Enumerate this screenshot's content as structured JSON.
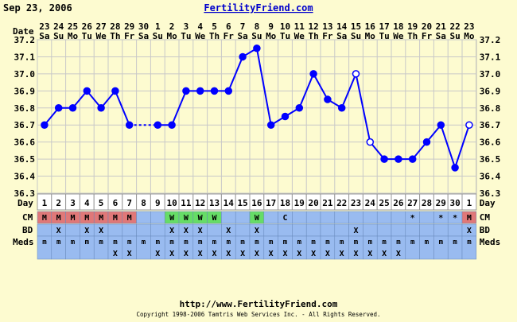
{
  "header": {
    "date": "Sep 23, 2006",
    "site": "FertilityFriend.com"
  },
  "footer": {
    "url": "http://www.FertilityFriend.com",
    "copyright": "Copyright 1998-2006 Tamtris Web Services Inc. - All Rights Reserved."
  },
  "row_labels": {
    "date": "Date",
    "day": "Day",
    "cm": "CM",
    "bd": "BD",
    "meds": "Meds"
  },
  "colors": {
    "background": "#fdfbd0",
    "line": "#0000ff",
    "cm_menstrual": "#e07878",
    "cm_watery": "#66dd66",
    "row_blue": "#99bbf0",
    "grid": "#c8c8c8"
  },
  "chart_data": {
    "type": "line",
    "title": "",
    "xlabel": "Day",
    "ylabel": "",
    "ylim": [
      36.3,
      37.2
    ],
    "y_ticks": [
      "36.3",
      "36.4",
      "36.5",
      "36.6",
      "36.7",
      "36.8",
      "36.9",
      "37.0",
      "37.1",
      "37.2"
    ],
    "grid": true,
    "dates": [
      "23",
      "24",
      "25",
      "26",
      "27",
      "28",
      "29",
      "30",
      "1",
      "2",
      "3",
      "4",
      "5",
      "6",
      "7",
      "8",
      "9",
      "10",
      "11",
      "12",
      "13",
      "14",
      "15",
      "16",
      "17",
      "18",
      "19",
      "20",
      "21",
      "22",
      "23"
    ],
    "weekdays": [
      "Sa",
      "Su",
      "Mo",
      "Tu",
      "We",
      "Th",
      "Fr",
      "Sa",
      "Su",
      "Mo",
      "Tu",
      "We",
      "Th",
      "Fr",
      "Sa",
      "Su",
      "Mo",
      "Tu",
      "We",
      "Th",
      "Fr",
      "Sa",
      "Su",
      "Mo",
      "Tu",
      "We",
      "Th",
      "Fr",
      "Sa",
      "Su",
      "Mo"
    ],
    "days": [
      "1",
      "2",
      "3",
      "4",
      "5",
      "6",
      "7",
      "8",
      "9",
      "10",
      "11",
      "12",
      "13",
      "14",
      "15",
      "16",
      "17",
      "18",
      "19",
      "20",
      "21",
      "22",
      "23",
      "24",
      "25",
      "26",
      "27",
      "28",
      "29",
      "30",
      "1"
    ],
    "temps": [
      36.7,
      36.8,
      36.8,
      36.9,
      36.8,
      36.9,
      36.7,
      null,
      36.7,
      36.7,
      36.9,
      36.9,
      36.9,
      36.9,
      37.1,
      37.15,
      36.7,
      36.75,
      36.8,
      37.0,
      36.85,
      36.8,
      37.0,
      36.6,
      36.5,
      36.5,
      36.5,
      36.6,
      36.7,
      36.45,
      36.7
    ],
    "open_points": [
      22,
      23,
      30
    ],
    "dashed_segments": [
      [
        6,
        8
      ]
    ],
    "cm": [
      "M",
      "M",
      "M",
      "M",
      "M",
      "M",
      "M",
      "",
      "",
      "W",
      "W",
      "W",
      "W",
      "",
      "",
      "W",
      "",
      "C",
      "",
      "",
      "",
      "",
      "",
      "",
      "",
      "",
      "*",
      "",
      "*",
      "*",
      "M"
    ],
    "bd": [
      "",
      "X",
      "",
      "X",
      "X",
      "",
      "",
      "",
      "",
      "X",
      "X",
      "X",
      "",
      "X",
      "",
      "X",
      "",
      "",
      "",
      "",
      "",
      "",
      "X",
      "",
      "",
      "",
      "",
      "",
      "",
      "",
      "X"
    ],
    "meds": [
      "m",
      "m",
      "m",
      "m",
      "m",
      "m",
      "m",
      "m",
      "m",
      "m",
      "m",
      "m",
      "m",
      "m",
      "m",
      "m",
      "m",
      "m",
      "m",
      "m",
      "m",
      "m",
      "m",
      "m",
      "m",
      "m",
      "m",
      "m",
      "m",
      "m",
      "m"
    ],
    "meds_x": [
      "",
      "",
      "",
      "",
      "",
      "X",
      "X",
      "",
      "X",
      "X",
      "X",
      "X",
      "X",
      "X",
      "X",
      "X",
      "X",
      "X",
      "X",
      "X",
      "X",
      "X",
      "X",
      "X",
      "X",
      "X",
      "",
      "",
      "",
      "",
      ""
    ]
  }
}
